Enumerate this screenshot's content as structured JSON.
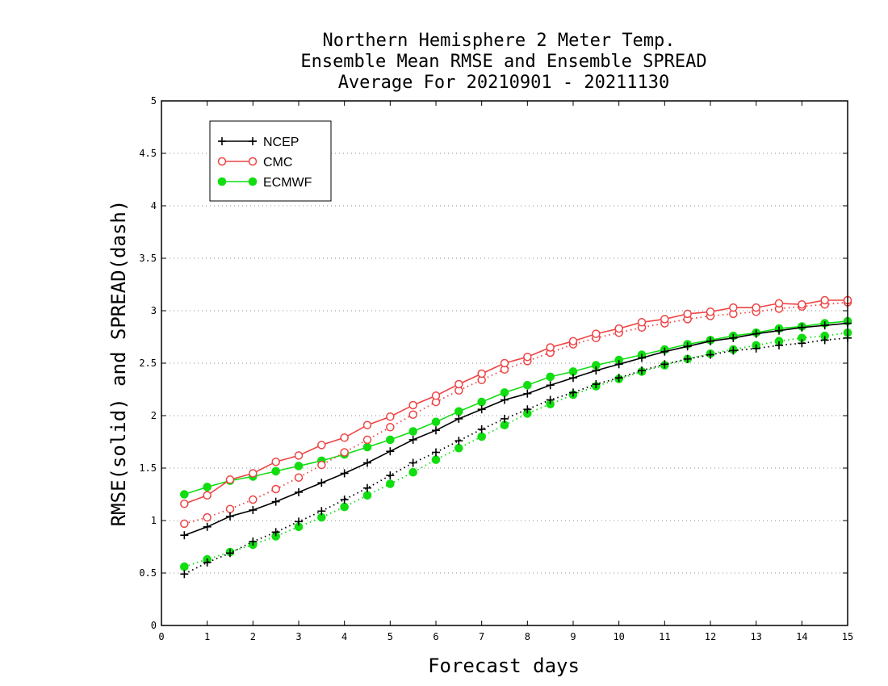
{
  "chart_data": {
    "type": "line",
    "title": [
      "Northern Hemisphere 2 Meter Temp.",
      "Ensemble Mean RMSE and Ensemble SPREAD",
      "Average For 20210901 - 20211130"
    ],
    "xlabel": "Forecast days",
    "ylabel": "RMSE(solid) and SPREAD(dash)",
    "xlim": [
      0,
      15
    ],
    "ylim": [
      0,
      5
    ],
    "xticks": [
      "0",
      "1",
      "2",
      "3",
      "4",
      "5",
      "6",
      "7",
      "8",
      "9",
      "10",
      "11",
      "12",
      "13",
      "14",
      "15"
    ],
    "yticks": [
      "0",
      "0.5",
      "1",
      "1.5",
      "2",
      "2.5",
      "3",
      "3.5",
      "4",
      "4.5",
      "5"
    ],
    "grid": "horizontal dotted",
    "legend_position": "top-left",
    "x": [
      0.5,
      1,
      1.5,
      2,
      2.5,
      3,
      3.5,
      4,
      4.5,
      5,
      5.5,
      6,
      6.5,
      7,
      7.5,
      8,
      8.5,
      9,
      9.5,
      10,
      10.5,
      11,
      11.5,
      12,
      12.5,
      13,
      13.5,
      14,
      14.5,
      15
    ],
    "series": [
      {
        "name": "NCEP",
        "color": "#000000",
        "marker": "plus",
        "rmse": [
          0.86,
          0.94,
          1.04,
          1.1,
          1.18,
          1.27,
          1.36,
          1.45,
          1.55,
          1.66,
          1.77,
          1.86,
          1.97,
          2.06,
          2.15,
          2.21,
          2.29,
          2.36,
          2.43,
          2.49,
          2.55,
          2.61,
          2.66,
          2.71,
          2.74,
          2.78,
          2.81,
          2.84,
          2.86,
          2.88
        ],
        "spread": [
          0.49,
          0.6,
          0.69,
          0.8,
          0.89,
          0.99,
          1.09,
          1.2,
          1.31,
          1.43,
          1.55,
          1.65,
          1.76,
          1.87,
          1.97,
          2.06,
          2.15,
          2.22,
          2.3,
          2.36,
          2.43,
          2.49,
          2.54,
          2.58,
          2.62,
          2.64,
          2.67,
          2.69,
          2.72,
          2.74
        ]
      },
      {
        "name": "CMC",
        "color": "#ee4444",
        "marker": "open-circle",
        "rmse": [
          1.16,
          1.24,
          1.39,
          1.45,
          1.56,
          1.62,
          1.72,
          1.79,
          1.91,
          1.99,
          2.1,
          2.19,
          2.3,
          2.4,
          2.5,
          2.56,
          2.65,
          2.71,
          2.78,
          2.83,
          2.89,
          2.92,
          2.97,
          2.99,
          3.03,
          3.03,
          3.07,
          3.06,
          3.1,
          3.1
        ],
        "spread": [
          0.97,
          1.03,
          1.11,
          1.2,
          1.3,
          1.41,
          1.53,
          1.65,
          1.77,
          1.89,
          2.01,
          2.13,
          2.24,
          2.34,
          2.44,
          2.52,
          2.6,
          2.68,
          2.74,
          2.79,
          2.84,
          2.88,
          2.92,
          2.95,
          2.97,
          2.99,
          3.02,
          3.04,
          3.06,
          3.08
        ]
      },
      {
        "name": "ECMWF",
        "color": "#11dd11",
        "marker": "filled-circle",
        "rmse": [
          1.25,
          1.32,
          1.38,
          1.42,
          1.47,
          1.52,
          1.57,
          1.63,
          1.7,
          1.77,
          1.85,
          1.94,
          2.04,
          2.13,
          2.22,
          2.29,
          2.37,
          2.42,
          2.48,
          2.53,
          2.58,
          2.63,
          2.68,
          2.72,
          2.76,
          2.79,
          2.83,
          2.85,
          2.88,
          2.9
        ],
        "spread": [
          0.56,
          0.63,
          0.7,
          0.77,
          0.85,
          0.94,
          1.03,
          1.13,
          1.24,
          1.35,
          1.46,
          1.58,
          1.69,
          1.8,
          1.91,
          2.02,
          2.11,
          2.2,
          2.28,
          2.35,
          2.42,
          2.48,
          2.54,
          2.59,
          2.63,
          2.67,
          2.71,
          2.74,
          2.76,
          2.79
        ]
      }
    ]
  }
}
